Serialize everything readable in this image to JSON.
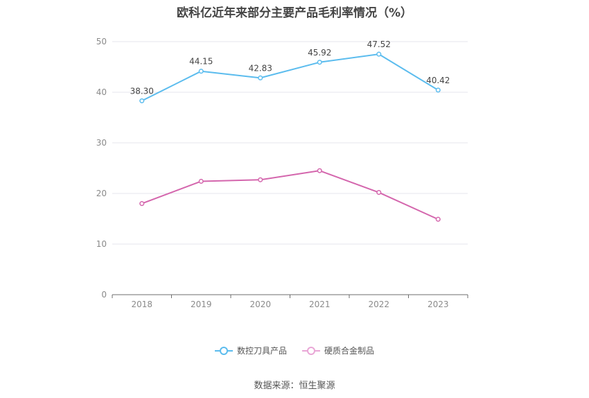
{
  "chart_data": {
    "type": "line",
    "title": "欧科亿近年来部分主要产品毛利率情况（%）",
    "x": [
      "2018",
      "2019",
      "2020",
      "2021",
      "2022",
      "2023"
    ],
    "ylim": [
      0,
      50
    ],
    "yticks": [
      "0",
      "10",
      "20",
      "30",
      "40",
      "50"
    ],
    "grid": true,
    "legend_position": "bottom",
    "series": [
      {
        "name": "数控刀具产品",
        "color": "#5bbcee",
        "values": [
          38.3,
          44.15,
          42.83,
          45.92,
          47.52,
          40.42
        ],
        "labels": [
          "38.30",
          "44.15",
          "42.83",
          "45.92",
          "47.52",
          "40.42"
        ]
      },
      {
        "name": "硬质合金制品",
        "color": "#d466ad",
        "values": [
          18.0,
          22.4,
          22.7,
          24.5,
          20.2,
          14.9
        ],
        "labels": []
      }
    ]
  },
  "source": "数据来源：恒生聚源"
}
